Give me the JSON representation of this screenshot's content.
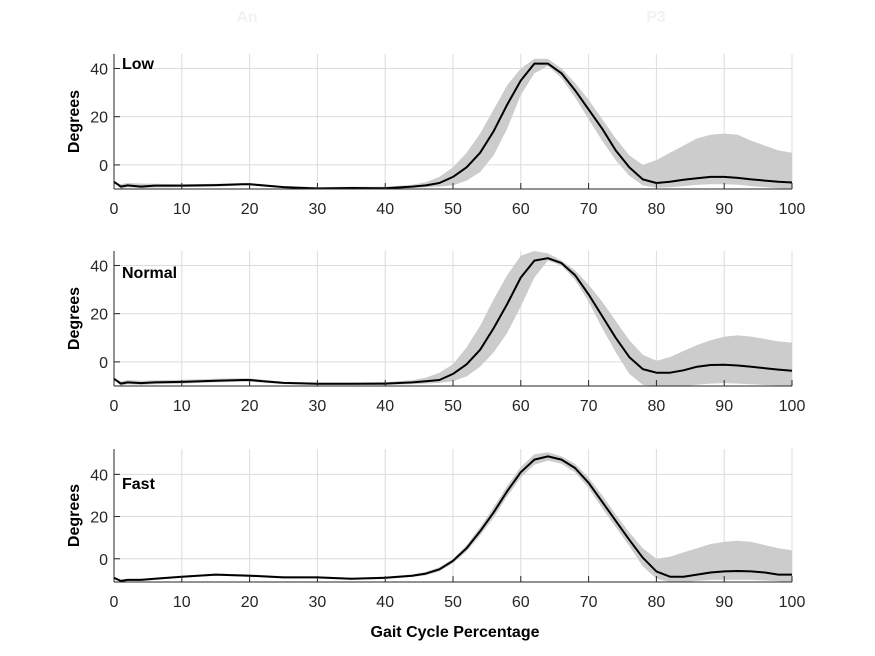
{
  "figure": {
    "xlabel": "Gait Cycle Percentage",
    "ghost_texts": [
      "An",
      "P3"
    ]
  },
  "chart_data": [
    {
      "type": "line",
      "panel_label": "Low",
      "ylabel": "Degrees",
      "xlim": [
        0,
        100
      ],
      "ylim": [
        -10,
        46
      ],
      "xticks": [
        0,
        10,
        20,
        30,
        40,
        50,
        60,
        70,
        80,
        90,
        100
      ],
      "yticks": [
        0,
        20,
        40
      ],
      "grid": true,
      "band_color": "#cccccc",
      "line_color": "#000000",
      "x": [
        0,
        1,
        2,
        4,
        6,
        10,
        15,
        19,
        20,
        22,
        25,
        30,
        35,
        40,
        44,
        46,
        48,
        50,
        52,
        54,
        56,
        58,
        60,
        62,
        64,
        66,
        68,
        70,
        72,
        74,
        76,
        78,
        80,
        82,
        84,
        86,
        88,
        90,
        92,
        94,
        96,
        98,
        100
      ],
      "mean": [
        -7,
        -9,
        -8.5,
        -9,
        -8.6,
        -8.6,
        -8.4,
        -8,
        -8,
        -8.5,
        -9.2,
        -9.8,
        -9.6,
        -9.7,
        -9,
        -8.5,
        -7.5,
        -5,
        -1,
        5,
        14,
        25,
        35,
        42,
        42,
        38,
        31,
        23,
        15,
        6,
        -1,
        -6,
        -7.5,
        -7,
        -6.2,
        -5.5,
        -5,
        -5,
        -5.4,
        -6,
        -6.5,
        -7,
        -7.3
      ],
      "upper": [
        -7,
        -8,
        -7.5,
        -7.7,
        -7.8,
        -8,
        -7.8,
        -7.5,
        -7.5,
        -8,
        -8.8,
        -9.2,
        -9.1,
        -9.1,
        -8.2,
        -7.2,
        -5,
        -1,
        5,
        13,
        23,
        33,
        40,
        44,
        44,
        40,
        34,
        27,
        19,
        11,
        4,
        0,
        2,
        5,
        8,
        11,
        12.5,
        13,
        12.5,
        10,
        8,
        6,
        5
      ],
      "lower": [
        -7,
        -10,
        -9.2,
        -9.7,
        -9.4,
        -9.2,
        -9,
        -8.5,
        -8.5,
        -9,
        -9.6,
        -10,
        -10,
        -10,
        -9.6,
        -9.3,
        -9,
        -8.5,
        -6.5,
        -3,
        4,
        15,
        29,
        38,
        41,
        36,
        28,
        19,
        10,
        2,
        -4.5,
        -8.5,
        -9.5,
        -9.3,
        -8.8,
        -8.3,
        -8,
        -8,
        -8.2,
        -8.8,
        -9.3,
        -9.7,
        -10
      ]
    },
    {
      "type": "line",
      "panel_label": "Normal",
      "ylabel": "Degrees",
      "xlim": [
        0,
        100
      ],
      "ylim": [
        -10,
        46
      ],
      "xticks": [
        0,
        10,
        20,
        30,
        40,
        50,
        60,
        70,
        80,
        90,
        100
      ],
      "yticks": [
        0,
        20,
        40
      ],
      "grid": true,
      "band_color": "#cccccc",
      "line_color": "#000000",
      "x": [
        0,
        1,
        2,
        4,
        6,
        10,
        15,
        19,
        20,
        22,
        25,
        30,
        35,
        40,
        44,
        46,
        48,
        50,
        52,
        54,
        56,
        58,
        60,
        62,
        64,
        66,
        68,
        70,
        72,
        74,
        76,
        78,
        80,
        82,
        84,
        86,
        88,
        90,
        92,
        94,
        96,
        98,
        100
      ],
      "mean": [
        -7,
        -9,
        -8.5,
        -8.8,
        -8.5,
        -8.3,
        -7.8,
        -7.5,
        -7.5,
        -8,
        -8.7,
        -9.1,
        -9.1,
        -9,
        -8.5,
        -8,
        -7.5,
        -5,
        -1,
        5,
        14,
        24,
        35,
        42,
        43,
        41,
        36,
        28,
        19,
        10,
        2,
        -3,
        -4.5,
        -4.5,
        -3.5,
        -2,
        -1.3,
        -1.2,
        -1.5,
        -2,
        -2.6,
        -3.2,
        -3.7
      ],
      "upper": [
        -7,
        -8,
        -7.5,
        -7.8,
        -7.6,
        -7.4,
        -7,
        -6.8,
        -6.8,
        -7.4,
        -8.2,
        -8.6,
        -8.6,
        -8.4,
        -7.6,
        -6.5,
        -4.5,
        -1,
        6,
        15,
        26,
        36,
        44,
        46,
        45,
        42,
        38,
        32,
        25,
        17,
        9,
        3,
        0.5,
        2,
        4.5,
        7,
        9,
        10.5,
        11,
        10.5,
        9.5,
        8.5,
        8
      ],
      "lower": [
        -7,
        -10,
        -9.3,
        -9.6,
        -9.3,
        -9,
        -8.5,
        -8.2,
        -8.2,
        -8.6,
        -9.2,
        -9.6,
        -9.6,
        -9.6,
        -9.2,
        -9,
        -8.7,
        -8,
        -6,
        -2,
        4,
        12,
        23,
        35,
        42,
        40,
        34,
        25,
        14,
        4,
        -5,
        -9.5,
        -10,
        -10,
        -10,
        -9.5,
        -9,
        -8.8,
        -9,
        -9.3,
        -9.6,
        -9.8,
        -10
      ]
    },
    {
      "type": "line",
      "panel_label": "Fast",
      "ylabel": "Degrees",
      "xlim": [
        0,
        100
      ],
      "ylim": [
        -11,
        52
      ],
      "xticks": [
        0,
        10,
        20,
        30,
        40,
        50,
        60,
        70,
        80,
        90,
        100
      ],
      "yticks": [
        0,
        20,
        40
      ],
      "grid": true,
      "band_color": "#cccccc",
      "line_color": "#000000",
      "x": [
        0,
        1,
        2,
        4,
        6,
        10,
        15,
        20,
        25,
        30,
        35,
        40,
        44,
        46,
        48,
        50,
        52,
        54,
        56,
        58,
        60,
        62,
        64,
        66,
        68,
        70,
        72,
        74,
        76,
        78,
        80,
        82,
        84,
        86,
        88,
        90,
        92,
        94,
        96,
        98,
        100
      ],
      "mean": [
        -9,
        -10.5,
        -10,
        -10,
        -9.5,
        -8.5,
        -7.5,
        -8,
        -8.8,
        -8.8,
        -9.5,
        -9,
        -8,
        -7,
        -5,
        -1,
        5,
        13,
        22,
        32,
        41,
        47,
        48.5,
        47,
        43,
        36,
        27,
        18,
        9,
        0.5,
        -6,
        -8.5,
        -8.5,
        -7.5,
        -6.5,
        -6,
        -5.8,
        -6,
        -6.5,
        -7.5,
        -7.5
      ],
      "upper": [
        -9,
        -10,
        -9.5,
        -9.4,
        -9,
        -8,
        -7,
        -7.4,
        -8.2,
        -8.3,
        -9,
        -8.5,
        -7.4,
        -6.2,
        -4,
        0,
        6.5,
        15,
        24.5,
        34.5,
        43.5,
        49.5,
        50.5,
        48.5,
        45,
        38.5,
        30,
        21,
        12.5,
        5,
        0,
        1,
        3,
        5,
        7,
        8,
        8.5,
        8,
        6.5,
        5,
        4
      ],
      "lower": [
        -9,
        -11,
        -10.5,
        -10.5,
        -10,
        -9,
        -8,
        -8.5,
        -9.3,
        -9.3,
        -10,
        -9.6,
        -8.6,
        -7.8,
        -6,
        -2,
        3.5,
        11,
        19.5,
        29.5,
        38.5,
        44.5,
        46.5,
        45,
        41,
        33.5,
        24,
        15,
        6,
        -3.5,
        -9.5,
        -11,
        -11,
        -10.5,
        -10,
        -10,
        -10,
        -10,
        -10.3,
        -10.6,
        -11
      ]
    }
  ]
}
